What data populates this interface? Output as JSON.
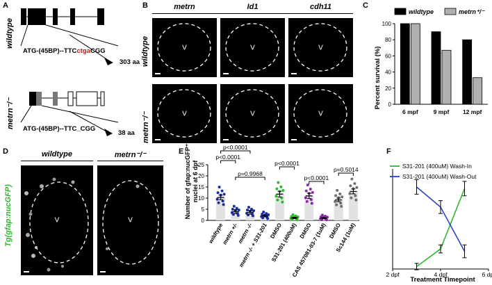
{
  "panels": {
    "A": {
      "label": "A",
      "row_labels": [
        "wildtype",
        "metrn⁻/⁻"
      ],
      "wt_seq_prefix": "ATG-(45BP)--TTC",
      "wt_seq_red": "ctga",
      "wt_seq_suffix": "CGG",
      "wt_aa": "303 aa",
      "mut_seq": "ATG-(45BP)--TTC_CGG",
      "mut_aa": "38 aa"
    },
    "B": {
      "label": "B",
      "col_labels": [
        "metrn",
        "Id1",
        "cdh11"
      ],
      "row_labels": [
        "wildtype",
        "metrn⁻/⁻"
      ],
      "v_label": "V"
    },
    "C": {
      "label": "C",
      "legend": [
        "wildtype",
        "metrn⁺/⁻"
      ]
    },
    "D": {
      "label": "D",
      "col_labels": [
        "wildtype",
        "metrn⁻/⁻"
      ],
      "row_label": "Tg(gfap:nucGFP)",
      "v_label": "V"
    },
    "E": {
      "label": "E",
      "ylabel_1": "Number of gfap:nucGFP⁺",
      "ylabel_2": "nuclei at 6 dpf",
      "pvalues": [
        "p<0.0001",
        "p<0.0001",
        "p=0.9968",
        "p<0.0001",
        "p<0.0001",
        "p=0.5014"
      ]
    },
    "F": {
      "label": "F",
      "xlabel": "Treatment Timepoint"
    }
  },
  "chart_data": [
    {
      "type": "bar",
      "categories": [
        "6 mpf",
        "9 mpf",
        "12 mpf"
      ],
      "series": [
        {
          "name": "wildtype",
          "values": [
            100,
            90,
            80
          ]
        },
        {
          "name": "metrn⁺/⁻",
          "values": [
            100,
            67,
            33
          ]
        }
      ],
      "ylabel": "Percent survival (%)",
      "ylim": [
        0,
        100
      ],
      "yticks": [
        0,
        20,
        40,
        60,
        80,
        100
      ],
      "colors": [
        "#000000",
        "#b0b0b0"
      ],
      "legend": "top"
    },
    {
      "type": "bar",
      "categories": [
        "wildtype",
        "metrn +/-",
        "metrn -/-",
        "metrn -/- + S31-201",
        "DMSO",
        "S31-201 (400uM)",
        "DMSO",
        "CAS 457081-03-7 (1uM)",
        "DMSO",
        "Sc144 (1uM)"
      ],
      "values": [
        10.3,
        3.9,
        3.6,
        2.0,
        11.8,
        1.1,
        11.0,
        1.0,
        9.2,
        13.0
      ],
      "errors": [
        1.0,
        0.8,
        0.8,
        0.4,
        1.3,
        0.3,
        1.2,
        0.3,
        0.8,
        1.1
      ],
      "dot_colors": [
        "#1a2fa6",
        "#1a2fa6",
        "#1a2fa6",
        "#1a2fa6",
        "#2db82d",
        "#2db82d",
        "#8a2aa8",
        "#8a2aa8",
        "#707070",
        "#707070"
      ],
      "ylim": [
        0,
        25
      ],
      "yticks": [
        0,
        5,
        10,
        15,
        20,
        25
      ]
    },
    {
      "type": "line",
      "x": [
        3,
        4,
        5
      ],
      "series": [
        {
          "name": "S31-201 (400uM) Wash-In",
          "values": [
            0.3,
            2.5,
            10.0
          ],
          "errors": [
            0.4,
            0.5,
            0.9
          ],
          "color": "#2db82d"
        },
        {
          "name": "S31-201 (400uM) Wash-Out",
          "values": [
            10.2,
            7.7,
            2.2
          ],
          "errors": [
            0.9,
            0.8,
            0.8
          ],
          "color": "#2b3fd0"
        }
      ],
      "xticks": [
        "2 dpf",
        "4 dpf",
        "6 dpf"
      ],
      "xtick_values": [
        2,
        4,
        6
      ],
      "xlim": [
        2,
        6
      ],
      "ylim": [
        0,
        14
      ],
      "xlabel": "Treatment Timepoint",
      "legend": "top-left"
    }
  ]
}
